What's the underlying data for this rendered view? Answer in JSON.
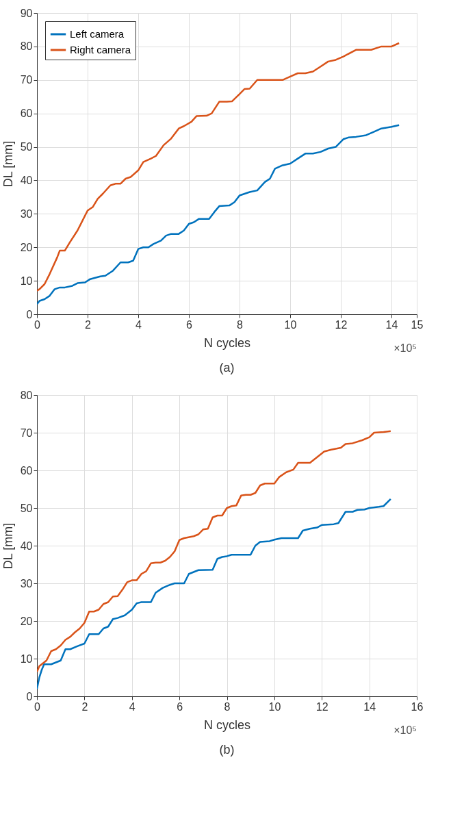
{
  "chart_data": [
    {
      "type": "line",
      "xlabel": "N cycles",
      "ylabel": "DL [mm]",
      "annotations": [
        "×10⁵",
        "(a)"
      ],
      "xlim": [
        0,
        15
      ],
      "xticks": [
        0,
        2,
        4,
        6,
        8,
        10,
        12,
        14,
        15
      ],
      "ylim": [
        0,
        90
      ],
      "yticks": [
        0,
        10,
        20,
        30,
        40,
        50,
        60,
        70,
        80,
        90
      ],
      "grid": true,
      "legend": "top left",
      "line_style": "solid",
      "series": [
        {
          "name": "Left camera",
          "color": "#0072bd",
          "x": [
            0,
            0.1,
            0.3,
            0.5,
            0.7,
            0.9,
            1.1,
            1.4,
            1.6,
            1.9,
            2.1,
            2.5,
            2.7,
            3.0,
            3.3,
            3.6,
            3.8,
            4.0,
            4.2,
            4.4,
            4.6,
            4.9,
            5.1,
            5.3,
            5.6,
            5.8,
            6.0,
            6.2,
            6.4,
            6.8,
            7.0,
            7.2,
            7.6,
            7.8,
            8.0,
            8.4,
            8.7,
            9.0,
            9.2,
            9.4,
            9.7,
            10.0,
            10.3,
            10.6,
            10.9,
            11.2,
            11.5,
            11.8,
            12.1,
            12.3,
            12.6,
            13.0,
            13.3,
            13.6,
            14.0,
            14.3
          ],
          "values": [
            3,
            4,
            4.5,
            5.5,
            7.5,
            8,
            8,
            8.5,
            9.3,
            9.5,
            10.5,
            11.3,
            11.5,
            13,
            15.5,
            15.5,
            16,
            19.5,
            20,
            20,
            21,
            22,
            23.5,
            24,
            24,
            25,
            27,
            27.5,
            28.5,
            28.5,
            30.5,
            32.3,
            32.5,
            33.5,
            35.5,
            36.5,
            37,
            39.5,
            40.5,
            43.5,
            44.5,
            45,
            46.5,
            48,
            48,
            48.5,
            49.5,
            50,
            52.3,
            52.8,
            53,
            53.5,
            54.5,
            55.5,
            56,
            56.5
          ]
        },
        {
          "name": "Right camera",
          "color": "#d95319",
          "x": [
            0,
            0.1,
            0.3,
            0.5,
            0.8,
            0.9,
            1.1,
            1.3,
            1.6,
            1.8,
            2.0,
            2.2,
            2.4,
            2.6,
            2.9,
            3.1,
            3.3,
            3.5,
            3.7,
            4.0,
            4.2,
            4.5,
            4.7,
            5.0,
            5.3,
            5.6,
            5.8,
            6.1,
            6.3,
            6.7,
            6.9,
            7.2,
            7.5,
            7.7,
            8.0,
            8.2,
            8.4,
            8.7,
            9.0,
            9.7,
            10.0,
            10.3,
            10.6,
            10.9,
            11.2,
            11.5,
            11.8,
            12.1,
            12.6,
            13.2,
            13.6,
            14.0,
            14.3
          ],
          "values": [
            7,
            7.5,
            9,
            12,
            17,
            19,
            19,
            21.5,
            25,
            28,
            31,
            32,
            34.5,
            36,
            38.5,
            39,
            39,
            40.5,
            41,
            43,
            45.5,
            46.5,
            47.3,
            50.5,
            52.5,
            55.5,
            56.2,
            57.5,
            59.2,
            59.3,
            60,
            63.5,
            63.5,
            63.6,
            65.8,
            67.3,
            67.4,
            70,
            70,
            70,
            71,
            72,
            72,
            72.5,
            74,
            75.5,
            76,
            77,
            79,
            79,
            80,
            80,
            81
          ]
        }
      ]
    },
    {
      "type": "line",
      "xlabel": "N cycles",
      "ylabel": "DL [mm]",
      "annotations": [
        "×10⁵",
        "(b)"
      ],
      "xlim": [
        0,
        16
      ],
      "xticks": [
        0,
        2,
        4,
        6,
        8,
        10,
        12,
        14,
        16
      ],
      "ylim": [
        0,
        80
      ],
      "yticks": [
        0,
        10,
        20,
        30,
        40,
        50,
        60,
        70,
        80
      ],
      "grid": true,
      "legend": "top left",
      "line_style": "solid",
      "series": [
        {
          "name": "Left camera",
          "color": "#0072bd",
          "x": [
            0,
            0.1,
            0.2,
            0.3,
            0.6,
            1.0,
            1.2,
            1.4,
            1.7,
            2.0,
            2.2,
            2.6,
            2.8,
            3.0,
            3.2,
            3.4,
            3.7,
            4.0,
            4.2,
            4.4,
            4.8,
            5.0,
            5.3,
            5.6,
            5.8,
            6.2,
            6.4,
            6.8,
            7.4,
            7.6,
            7.8,
            8.0,
            8.2,
            9.0,
            9.2,
            9.4,
            9.8,
            10.0,
            10.3,
            11.0,
            11.2,
            11.5,
            11.8,
            12.0,
            12.5,
            12.7,
            13.0,
            13.3,
            13.5,
            13.8,
            14.0,
            14.4,
            14.6,
            14.9
          ],
          "values": [
            2,
            5,
            7,
            8.5,
            8.5,
            9.5,
            12.5,
            12.5,
            13.3,
            14,
            16.5,
            16.5,
            18,
            18.5,
            20.5,
            20.8,
            21.5,
            23,
            24.7,
            25,
            25,
            27.5,
            28.8,
            29.6,
            30,
            30,
            32.5,
            33.5,
            33.6,
            36.5,
            37,
            37.2,
            37.6,
            37.6,
            40,
            41,
            41.2,
            41.6,
            42,
            42,
            44,
            44.5,
            44.8,
            45.5,
            45.7,
            46,
            49,
            49,
            49.5,
            49.6,
            50,
            50.3,
            50.5,
            52.4
          ]
        },
        {
          "name": "Right camera",
          "color": "#d95319",
          "x": [
            0,
            0.1,
            0.3,
            0.4,
            0.6,
            0.8,
            1.0,
            1.2,
            1.4,
            1.6,
            1.8,
            2.0,
            2.2,
            2.4,
            2.6,
            2.8,
            3.0,
            3.2,
            3.4,
            3.6,
            3.8,
            4.0,
            4.2,
            4.4,
            4.6,
            4.8,
            5.0,
            5.2,
            5.4,
            5.6,
            5.8,
            6.0,
            6.2,
            6.6,
            6.8,
            7.0,
            7.2,
            7.4,
            7.6,
            7.8,
            8.0,
            8.2,
            8.4,
            8.6,
            8.8,
            9.0,
            9.2,
            9.4,
            9.6,
            10.0,
            10.2,
            10.5,
            10.8,
            11.0,
            11.5,
            11.8,
            12.1,
            12.4,
            12.8,
            13.0,
            13.3,
            13.7,
            14.0,
            14.2,
            14.6,
            14.9
          ],
          "values": [
            6.5,
            8,
            9,
            9.5,
            12,
            12.5,
            13.5,
            15,
            15.8,
            17,
            18,
            19.5,
            22.5,
            22.5,
            23,
            24.5,
            25,
            26.5,
            26.6,
            28.3,
            30.3,
            30.8,
            30.8,
            32.5,
            33.2,
            35.3,
            35.5,
            35.5,
            36,
            37,
            38.5,
            41.5,
            42,
            42.5,
            43,
            44.3,
            44.5,
            47.5,
            48,
            48,
            50,
            50.5,
            50.7,
            53.3,
            53.5,
            53.5,
            54,
            56,
            56.5,
            56.5,
            58.2,
            59.5,
            60.2,
            62,
            62,
            63.5,
            65,
            65.5,
            66,
            67,
            67.2,
            68,
            68.8,
            70,
            70.2,
            70.4
          ]
        }
      ]
    }
  ]
}
